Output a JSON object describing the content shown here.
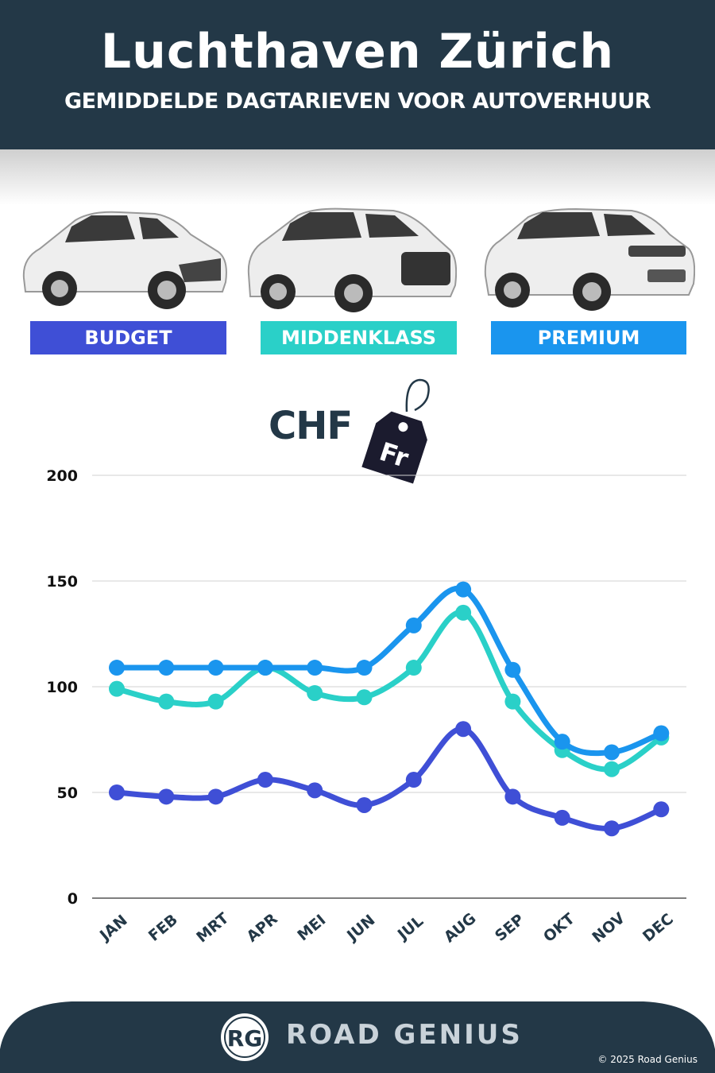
{
  "header": {
    "title": "Luchthaven Zürich",
    "subtitle": "GEMIDDELDE DAGTARIEVEN VOOR AUTOVERHUUR"
  },
  "categories": [
    {
      "label": "BUDGET",
      "color": "#3f4fd6",
      "icon": "hatchback-car-icon"
    },
    {
      "label": "MIDDENKLASS",
      "color": "#2ad0c8",
      "icon": "suv-car-icon"
    },
    {
      "label": "PREMIUM",
      "color": "#1a95ee",
      "icon": "luxury-suv-car-icon"
    }
  ],
  "currency": {
    "code": "CHF",
    "tag_label": "Fr",
    "icon": "price-tag-icon"
  },
  "chart_data": {
    "type": "line",
    "categories": [
      "JAN",
      "FEB",
      "MRT",
      "APR",
      "MEI",
      "JUN",
      "JUL",
      "AUG",
      "SEP",
      "OKT",
      "NOV",
      "DEC"
    ],
    "series": [
      {
        "name": "BUDGET",
        "color": "#3f4fd6",
        "values": [
          50,
          48,
          48,
          56,
          51,
          44,
          56,
          80,
          48,
          38,
          33,
          42
        ]
      },
      {
        "name": "MIDDENKLASS",
        "color": "#2ad0c8",
        "values": [
          99,
          93,
          93,
          109,
          97,
          95,
          109,
          135,
          93,
          70,
          61,
          76
        ]
      },
      {
        "name": "PREMIUM",
        "color": "#1a95ee",
        "values": [
          109,
          109,
          109,
          109,
          109,
          109,
          129,
          146,
          108,
          74,
          69,
          78
        ]
      }
    ],
    "yticks": [
      0,
      50,
      100,
      150,
      200
    ],
    "ylim": [
      0,
      200
    ],
    "grid": true,
    "title": "",
    "xlabel": "",
    "ylabel": ""
  },
  "footer": {
    "logo_letters": "RG",
    "brand": "ROAD GENIUS",
    "copyright": "© 2025 Road Genius"
  }
}
